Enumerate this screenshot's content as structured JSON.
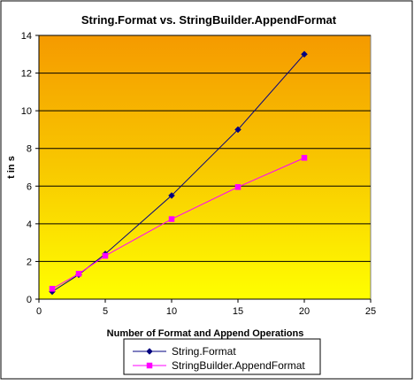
{
  "chart_data": {
    "type": "line",
    "title": "String.Format vs. StringBuilder.AppendFormat",
    "xlabel": "Number of Format and Append Operations",
    "ylabel": "t in s",
    "xlim": [
      0,
      25
    ],
    "ylim": [
      0,
      14
    ],
    "x_ticks": [
      0,
      5,
      10,
      15,
      20,
      25
    ],
    "y_ticks": [
      0,
      2,
      4,
      6,
      8,
      10,
      12,
      14
    ],
    "grid": "horizontal",
    "legend_position": "bottom",
    "plot_background": "gradient orange-to-yellow",
    "series": [
      {
        "name": "String.Format",
        "marker": "diamond",
        "color": "#000080",
        "points": [
          {
            "x": 1,
            "y": 0.4
          },
          {
            "x": 3,
            "y": 1.3
          },
          {
            "x": 5,
            "y": 2.4
          },
          {
            "x": 10,
            "y": 5.5
          },
          {
            "x": 15,
            "y": 9.0
          },
          {
            "x": 20,
            "y": 13.0
          }
        ]
      },
      {
        "name": "StringBuilder.AppendFormat",
        "marker": "square",
        "color": "#ff00ff",
        "points": [
          {
            "x": 1,
            "y": 0.55
          },
          {
            "x": 3,
            "y": 1.35
          },
          {
            "x": 5,
            "y": 2.3
          },
          {
            "x": 10,
            "y": 4.25
          },
          {
            "x": 15,
            "y": 5.95
          },
          {
            "x": 20,
            "y": 7.5
          }
        ]
      }
    ]
  }
}
